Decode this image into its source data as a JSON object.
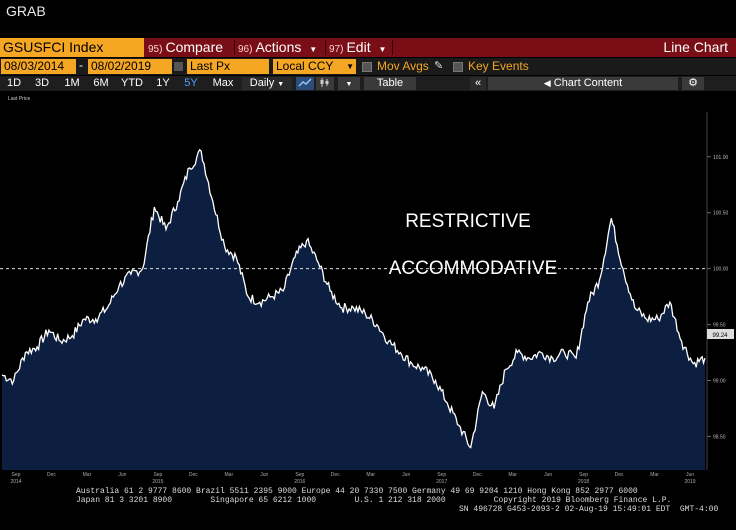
{
  "app": {
    "title": "GRAB"
  },
  "toolbar": {
    "ticker": "GSUSFCI Index",
    "compare_num": "95)",
    "compare_label": "Compare",
    "actions_num": "96)",
    "actions_label": "Actions",
    "edit_num": "97)",
    "edit_label": "Edit",
    "view_label": "Line Chart"
  },
  "controls": {
    "start_date": "08/03/2014",
    "end_date": "08/02/2019",
    "field": "Last Px",
    "currency": "Local CCY",
    "mov_avgs": "Mov Avgs",
    "key_events": "Key Events"
  },
  "ranges": [
    "1D",
    "3D",
    "1M",
    "6M",
    "YTD",
    "1Y",
    "5Y",
    "Max"
  ],
  "active_range": "5Y",
  "frequency": "Daily",
  "table_label": "Table",
  "chart_content_label": "Chart Content",
  "legend_label": "Last Price",
  "colors": {
    "accent": "#f5a623",
    "menu_bar": "#7a0e16",
    "series_fill": "#0c1f40",
    "active_tab": "#4aa3ff"
  },
  "chart_data": {
    "type": "area",
    "series": [
      {
        "name": "Last Price",
        "x": [
          "2014-08",
          "2014-09",
          "2014-10",
          "2014-11",
          "2014-12",
          "2015-01",
          "2015-02",
          "2015-03",
          "2015-04",
          "2015-05",
          "2015-06",
          "2015-07",
          "2015-08",
          "2015-09",
          "2015-10",
          "2015-11",
          "2015-12",
          "2016-01",
          "2016-02",
          "2016-03",
          "2016-04",
          "2016-05",
          "2016-06",
          "2016-07",
          "2016-08",
          "2016-09",
          "2016-10",
          "2016-11",
          "2016-12",
          "2017-01",
          "2017-02",
          "2017-03",
          "2017-04",
          "2017-05",
          "2017-06",
          "2017-07",
          "2017-08",
          "2017-09",
          "2017-10",
          "2017-11",
          "2017-12",
          "2018-01",
          "2018-02",
          "2018-03",
          "2018-04",
          "2018-05",
          "2018-06",
          "2018-07",
          "2018-08",
          "2018-09",
          "2018-10",
          "2018-11",
          "2018-12",
          "2019-01",
          "2019-02",
          "2019-03",
          "2019-04",
          "2019-05",
          "2019-06",
          "2019-07",
          "2019-08"
        ],
        "values": [
          99.05,
          99.0,
          99.25,
          99.3,
          99.45,
          99.35,
          99.4,
          99.55,
          99.55,
          99.65,
          99.85,
          99.95,
          100.0,
          100.55,
          100.35,
          100.6,
          100.9,
          101.05,
          100.6,
          100.2,
          100.1,
          99.75,
          99.7,
          99.75,
          99.8,
          100.1,
          100.25,
          100.05,
          99.8,
          99.65,
          99.65,
          99.6,
          99.5,
          99.35,
          99.25,
          99.15,
          99.1,
          99.0,
          98.8,
          98.6,
          98.4,
          98.9,
          98.75,
          99.1,
          99.25,
          99.2,
          99.25,
          99.2,
          99.25,
          99.2,
          99.7,
          99.9,
          100.45,
          100.0,
          99.65,
          99.55,
          99.55,
          99.7,
          99.35,
          99.15,
          99.2
        ]
      }
    ],
    "threshold": 100.0,
    "y_ticks": [
      "101.00",
      "100.50",
      "100.00",
      "99.50",
      "99.00",
      "98.50"
    ],
    "ylim": [
      98.2,
      101.4
    ],
    "x_tick_labels": [
      {
        "label": "Sep",
        "year": "2014"
      },
      {
        "label": "Dec"
      },
      {
        "label": "Mar"
      },
      {
        "label": "Jun"
      },
      {
        "label": "Sep",
        "year": "2015"
      },
      {
        "label": "Dec"
      },
      {
        "label": "Mar"
      },
      {
        "label": "Jun"
      },
      {
        "label": "Sep",
        "year": "2016"
      },
      {
        "label": "Dec"
      },
      {
        "label": "Mar"
      },
      {
        "label": "Jun"
      },
      {
        "label": "Sep",
        "year": "2017"
      },
      {
        "label": "Dec"
      },
      {
        "label": "Mar"
      },
      {
        "label": "Jun"
      },
      {
        "label": "Sep",
        "year": "2018"
      },
      {
        "label": "Dec"
      },
      {
        "label": "Mar"
      },
      {
        "label": "Jun",
        "year": "2019"
      }
    ],
    "annotations": [
      "RESTRICTIVE",
      "ACCOMMODATIVE"
    ],
    "last_value": "99.24",
    "grid": false
  },
  "footer": {
    "line1": "Australia 61 2 9777 8600 Brazil 5511 2395 9000 Europe 44 20 7330 7500 Germany 49 69 9204 1210 Hong Kong 852 2977 6000",
    "line2": "Japan 81 3 3201 8900        Singapore 65 6212 1000        U.S. 1 212 318 2000          Copyright 2019 Bloomberg Finance L.P.",
    "line3": "SN 496728 G453-2093-2 02-Aug-19 15:49:01 EDT  GMT-4:00"
  }
}
